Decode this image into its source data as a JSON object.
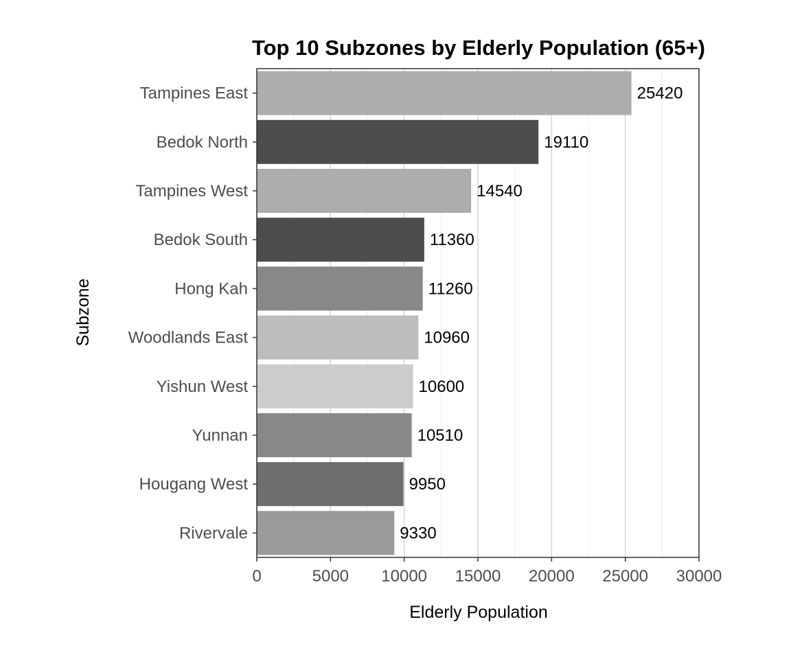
{
  "chart_data": {
    "type": "bar",
    "orientation": "horizontal",
    "title": "Top 10 Subzones by Elderly Population (65+)",
    "xlabel": "Elderly Population",
    "ylabel": "Subzone",
    "xlim": [
      0,
      30000
    ],
    "x_ticks": [
      0,
      5000,
      10000,
      15000,
      20000,
      25000,
      30000
    ],
    "grid": true,
    "legend": "none",
    "categories": [
      "Tampines East",
      "Bedok North",
      "Tampines West",
      "Bedok South",
      "Hong Kah",
      "Woodlands East",
      "Yishun West",
      "Yunnan",
      "Hougang West",
      "Rivervale"
    ],
    "values": [
      25420,
      19110,
      14540,
      11360,
      11260,
      10960,
      10600,
      10510,
      9950,
      9330
    ],
    "data_labels": [
      "25420",
      "19110",
      "14540",
      "11360",
      "11260",
      "10960",
      "10600",
      "10510",
      "9950",
      "9330"
    ],
    "bar_colors": [
      "#adadad",
      "#4d4d4d",
      "#adadad",
      "#4d4d4d",
      "#888888",
      "#bdbdbd",
      "#cccccc",
      "#888888",
      "#6e6e6e",
      "#9a9a9a"
    ]
  }
}
